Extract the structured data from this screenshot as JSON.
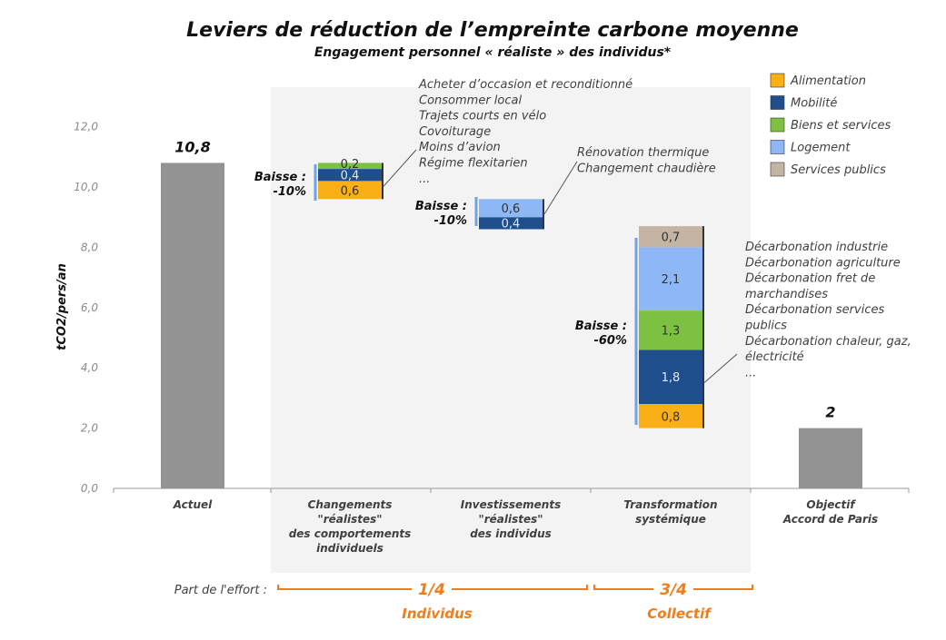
{
  "chart_data": {
    "type": "waterfall-stacked-bar",
    "title": "Leviers de réduction de l’empreinte carbone moyenne",
    "subtitle": "Engagement personnel « réaliste » des individus*",
    "ylabel": "tCO2/pers/an",
    "ylim": [
      0,
      12
    ],
    "yticks": [
      "0,0",
      "2,0",
      "4,0",
      "6,0",
      "8,0",
      "10,0",
      "12,0"
    ],
    "grid": false,
    "legend_position": "top-right",
    "legend": [
      {
        "name": "Alimentation",
        "color": "#FBAF17"
      },
      {
        "name": "Mobilité",
        "color": "#1F4E8C"
      },
      {
        "name": "Biens et services",
        "color": "#7DC142"
      },
      {
        "name": "Logement",
        "color": "#8DB8F5"
      },
      {
        "name": "Services publics",
        "color": "#C4B4A4"
      }
    ],
    "total_color": "#939393",
    "categories": [
      {
        "label": [
          "Actuel"
        ],
        "type": "total",
        "value": 10.8,
        "value_label": "10,8"
      },
      {
        "label": [
          "Changements",
          "\"réalistes\"",
          "des comportements",
          "individuels"
        ],
        "type": "drop",
        "top": 10.8,
        "segments": [
          {
            "series": "Alimentation",
            "value": 0.6,
            "label": "0,6"
          },
          {
            "series": "Mobilité",
            "value": 0.4,
            "label": "0,4"
          },
          {
            "series": "Biens et services",
            "value": 0.2,
            "label": "0,2"
          }
        ],
        "baisse": [
          "Baisse :",
          "-10%"
        ],
        "annotation": [
          "Acheter d’occasion et reconditionné",
          "Consommer local",
          "Trajets courts en vélo",
          "Covoiturage",
          "Moins d’avion",
          "Régime flexitarien",
          "..."
        ]
      },
      {
        "label": [
          "Investissements",
          "\"réalistes\"",
          "des individus"
        ],
        "type": "drop",
        "top": 9.6,
        "segments": [
          {
            "series": "Mobilité",
            "value": 0.4,
            "label": "0,4"
          },
          {
            "series": "Logement",
            "value": 0.6,
            "label": "0,6"
          }
        ],
        "baisse": [
          "Baisse :",
          "-10%"
        ],
        "annotation": [
          "Rénovation thermique",
          "Changement chaudière"
        ]
      },
      {
        "label": [
          "Transformation",
          "systémique"
        ],
        "type": "drop",
        "top": 8.7,
        "segments": [
          {
            "series": "Alimentation",
            "value": 0.8,
            "label": "0,8"
          },
          {
            "series": "Mobilité",
            "value": 1.8,
            "label": "1,8"
          },
          {
            "series": "Biens et services",
            "value": 1.3,
            "label": "1,3"
          },
          {
            "series": "Logement",
            "value": 2.1,
            "label": "2,1"
          },
          {
            "series": "Services publics",
            "value": 0.7,
            "label": "0,7"
          }
        ],
        "baisse": [
          "Baisse :",
          "-60%"
        ],
        "annotation": [
          "Décarbonation industrie",
          "Décarbonation agriculture",
          "Décarbonation fret de",
          "marchandises",
          "Décarbonation services",
          "publics",
          "Décarbonation chaleur, gaz,",
          "électricité",
          "..."
        ]
      },
      {
        "label": [
          "Objectif",
          "Accord de Paris"
        ],
        "type": "total",
        "value": 2,
        "value_label": "2"
      }
    ],
    "effort": {
      "label": "Part de l'effort :",
      "groups": [
        {
          "fraction": "1/4",
          "name": "Individus"
        },
        {
          "fraction": "3/4",
          "name": "Collectif"
        }
      ],
      "color": "#F07D1A"
    }
  }
}
